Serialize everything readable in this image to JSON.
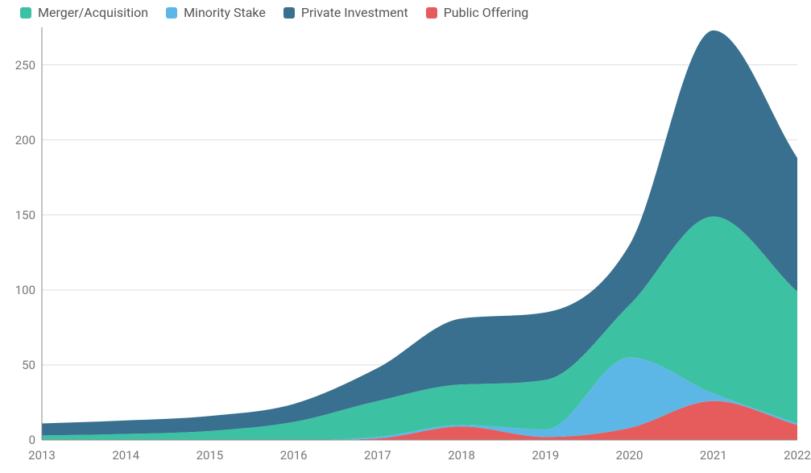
{
  "chart": {
    "type": "area",
    "stacked": true,
    "background_color": "#ffffff",
    "grid_color": "#dddddd",
    "axis_color": "#888888",
    "label_color": "#777777",
    "label_fontsize": 15,
    "legend_fontsize": 16,
    "legend_position": "top-left",
    "xlim": [
      2013,
      2022
    ],
    "ylim": [
      0,
      275
    ],
    "yticks": [
      0,
      50,
      100,
      150,
      200,
      250
    ],
    "xticks": [
      2013,
      2014,
      2015,
      2016,
      2017,
      2018,
      2019,
      2020,
      2021,
      2022
    ],
    "curve": "monotone",
    "series": [
      {
        "name": "Public Offering",
        "color": "#e65c5c",
        "values": [
          0,
          0,
          0,
          0,
          1,
          9,
          2,
          8,
          26,
          10
        ]
      },
      {
        "name": "Minority Stake",
        "color": "#5cb7e6",
        "values": [
          0,
          0,
          0,
          0,
          1,
          1,
          5,
          47,
          5,
          1
        ]
      },
      {
        "name": "Merger/Acquisition",
        "color": "#3dc1a3",
        "values": [
          3,
          4,
          6,
          12,
          24,
          27,
          33,
          35,
          118,
          88
        ]
      },
      {
        "name": "Private Investment",
        "color": "#39708f",
        "values": [
          8,
          9,
          10,
          12,
          22,
          44,
          45,
          40,
          124,
          89
        ]
      }
    ],
    "legend_order": [
      "Merger/Acquisition",
      "Minority Stake",
      "Private Investment",
      "Public Offering"
    ]
  }
}
